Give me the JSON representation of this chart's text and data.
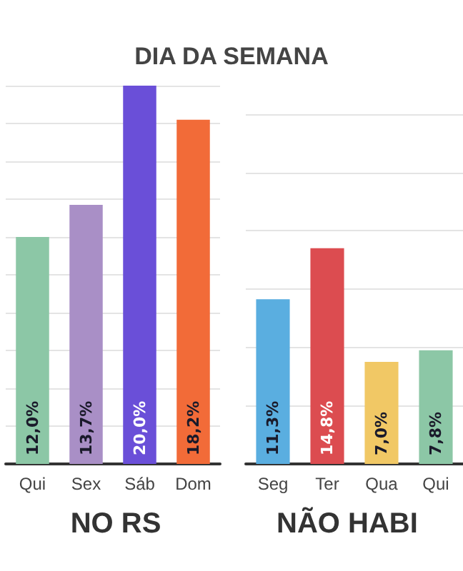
{
  "chart_data": [
    {
      "type": "bar",
      "title": "DIA DA SEMANA",
      "subtitle": "NO RS",
      "categories": [
        "Qui",
        "Sex",
        "Sáb",
        "Dom"
      ],
      "values": [
        12.0,
        13.7,
        20.0,
        18.2
      ],
      "colors": [
        "#8cc7a6",
        "#a98fc6",
        "#6a4fd8",
        "#f26b38"
      ],
      "value_labels": [
        "12,0%",
        "13,7%",
        "20,0%",
        "18,2%"
      ],
      "ylim": [
        0,
        20
      ],
      "yticks": [
        0,
        2,
        4,
        6,
        8,
        10,
        12,
        14,
        16,
        18,
        20
      ],
      "grid": "y",
      "tick_labels": "x"
    },
    {
      "type": "bar",
      "subtitle": "NÃO HABI",
      "categories": [
        "Seg",
        "Ter",
        "Qua",
        "Qui"
      ],
      "values": [
        11.3,
        14.8,
        7.0,
        7.8
      ],
      "colors": [
        "#5aaee0",
        "#dc4c50",
        "#f1c865",
        "#8cc7a6"
      ],
      "value_labels": [
        "11,3%",
        "14,8%",
        "7,0%",
        "7,8%"
      ],
      "ylim": [
        0,
        24
      ],
      "yticks": [
        0,
        4,
        8,
        12,
        16,
        20,
        24
      ],
      "grid": "y",
      "tick_labels": "x"
    }
  ]
}
